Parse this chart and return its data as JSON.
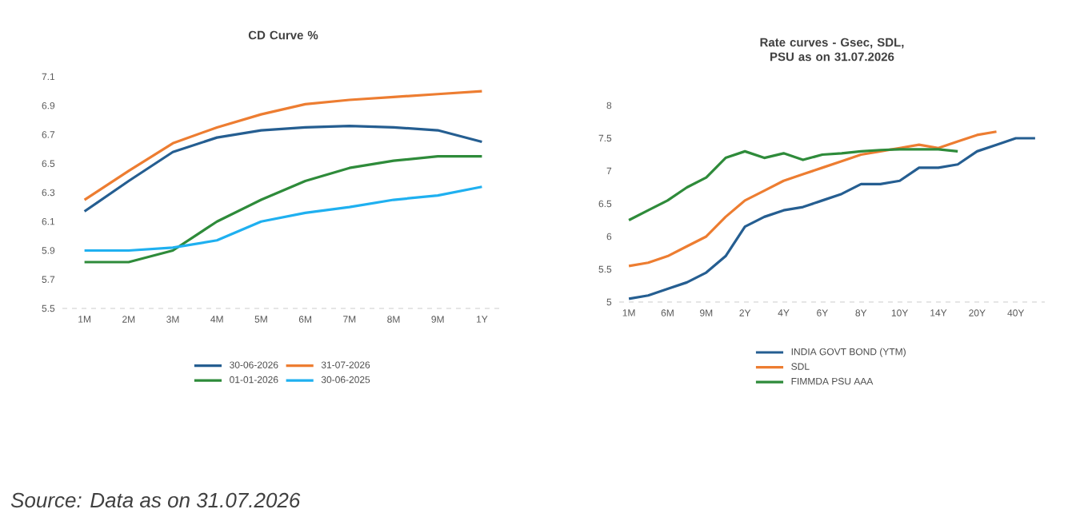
{
  "chart_data": [
    {
      "type": "line",
      "title": "CD Curve %",
      "categories": [
        "1M",
        "2M",
        "3M",
        "4M",
        "5M",
        "6M",
        "7M",
        "8M",
        "9M",
        "1Y"
      ],
      "series": [
        {
          "name": "30-06-2026",
          "color": "#255e91",
          "values": [
            6.17,
            6.38,
            6.58,
            6.68,
            6.73,
            6.75,
            6.76,
            6.75,
            6.73,
            6.65
          ]
        },
        {
          "name": "31-07-2026",
          "color": "#ed7d31",
          "values": [
            6.25,
            6.45,
            6.64,
            6.75,
            6.84,
            6.91,
            6.94,
            6.96,
            6.98,
            7.0
          ]
        },
        {
          "name": "01-01-2026",
          "color": "#2e8b3a",
          "values": [
            5.82,
            5.82,
            5.9,
            6.1,
            6.25,
            6.38,
            6.47,
            6.52,
            6.55,
            6.55
          ]
        },
        {
          "name": "30-06-2025",
          "color": "#1fb0f0",
          "values": [
            5.9,
            5.9,
            5.92,
            5.97,
            6.1,
            6.16,
            6.2,
            6.25,
            6.28,
            6.34
          ]
        }
      ],
      "ylim": [
        5.5,
        7.1
      ],
      "yticks": [
        5.5,
        5.7,
        5.9,
        6.1,
        6.3,
        6.5,
        6.7,
        6.9,
        7.1
      ],
      "legend": "bottom",
      "annotations": [
        "Source: Data as on 31.07.2026"
      ]
    },
    {
      "type": "line",
      "title": "Rate curves - Gsec, SDL, PSU as on 31.07.2026",
      "categories": [
        "1M",
        null,
        "6M",
        null,
        "9M",
        null,
        "2Y",
        null,
        "4Y",
        null,
        "6Y",
        null,
        "8Y",
        null,
        "10Y",
        null,
        "14Y",
        null,
        "20Y",
        null,
        "40Y",
        null
      ],
      "series": [
        {
          "name": "INDIA GOVT BOND (YTM)",
          "color": "#255e91",
          "values": [
            5.05,
            5.1,
            5.2,
            5.3,
            5.45,
            5.7,
            6.15,
            6.3,
            6.4,
            6.45,
            6.55,
            6.65,
            6.8,
            6.8,
            6.85,
            7.05,
            7.05,
            7.1,
            7.3,
            7.4,
            7.5,
            7.5
          ]
        },
        {
          "name": "SDL",
          "color": "#ed7d31",
          "values": [
            5.55,
            5.6,
            5.7,
            5.85,
            6.0,
            6.3,
            6.55,
            6.7,
            6.85,
            6.95,
            7.05,
            7.15,
            7.25,
            7.3,
            7.35,
            7.4,
            7.35,
            7.45,
            7.55,
            7.6,
            null,
            null
          ]
        },
        {
          "name": "FIMMDA PSU AAA",
          "color": "#2e8b3a",
          "values": [
            6.25,
            6.4,
            6.55,
            6.75,
            6.9,
            7.2,
            7.3,
            7.2,
            7.27,
            7.17,
            7.25,
            7.27,
            7.3,
            7.32,
            7.33,
            7.33,
            7.33,
            7.3,
            null,
            null,
            null,
            null
          ]
        }
      ],
      "ylim": [
        5,
        8
      ],
      "yticks": [
        5,
        5.5,
        6,
        6.5,
        7,
        7.5,
        8
      ],
      "legend": "bottom"
    }
  ]
}
